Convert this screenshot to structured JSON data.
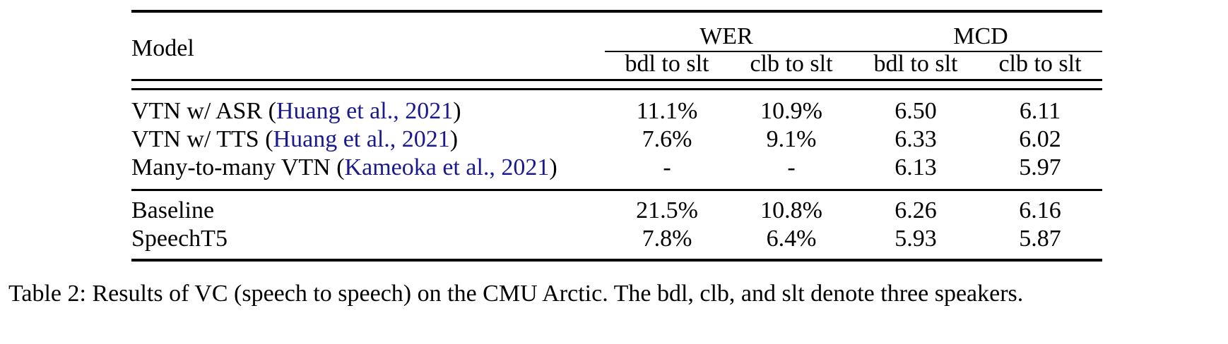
{
  "table": {
    "header": {
      "model": "Model",
      "groups": [
        {
          "label": "WER",
          "sub": [
            "bdl to slt",
            "clb to slt"
          ]
        },
        {
          "label": "MCD",
          "sub": [
            "bdl to slt",
            "clb to slt"
          ]
        }
      ]
    },
    "rows": [
      {
        "name": "VTN w/ ASR",
        "cite": "Huang et al., 2021",
        "values": [
          "11.1%",
          "10.9%",
          "6.50",
          "6.11"
        ],
        "bold": [
          false,
          false,
          false,
          false
        ]
      },
      {
        "name": "VTN w/ TTS",
        "cite": "Huang et al., 2021",
        "values": [
          "7.6%",
          "9.1%",
          "6.33",
          "6.02"
        ],
        "bold": [
          true,
          false,
          false,
          false
        ]
      },
      {
        "name": "Many-to-many VTN",
        "cite": "Kameoka et al., 2021",
        "values": [
          "-",
          "-",
          "6.13",
          "5.97"
        ],
        "bold": [
          false,
          false,
          false,
          false
        ]
      },
      {
        "name": "Baseline",
        "cite": "",
        "values": [
          "21.5%",
          "10.8%",
          "6.26",
          "6.16"
        ],
        "bold": [
          false,
          false,
          false,
          false
        ]
      },
      {
        "name": "SpeechT5",
        "cite": "",
        "values": [
          "7.8%",
          "6.4%",
          "5.93",
          "5.87"
        ],
        "bold": [
          false,
          true,
          true,
          true
        ]
      }
    ]
  },
  "caption": "Table 2:  Results of VC (speech to speech) on the CMU Arctic. The bdl, clb, and slt denote three speakers."
}
